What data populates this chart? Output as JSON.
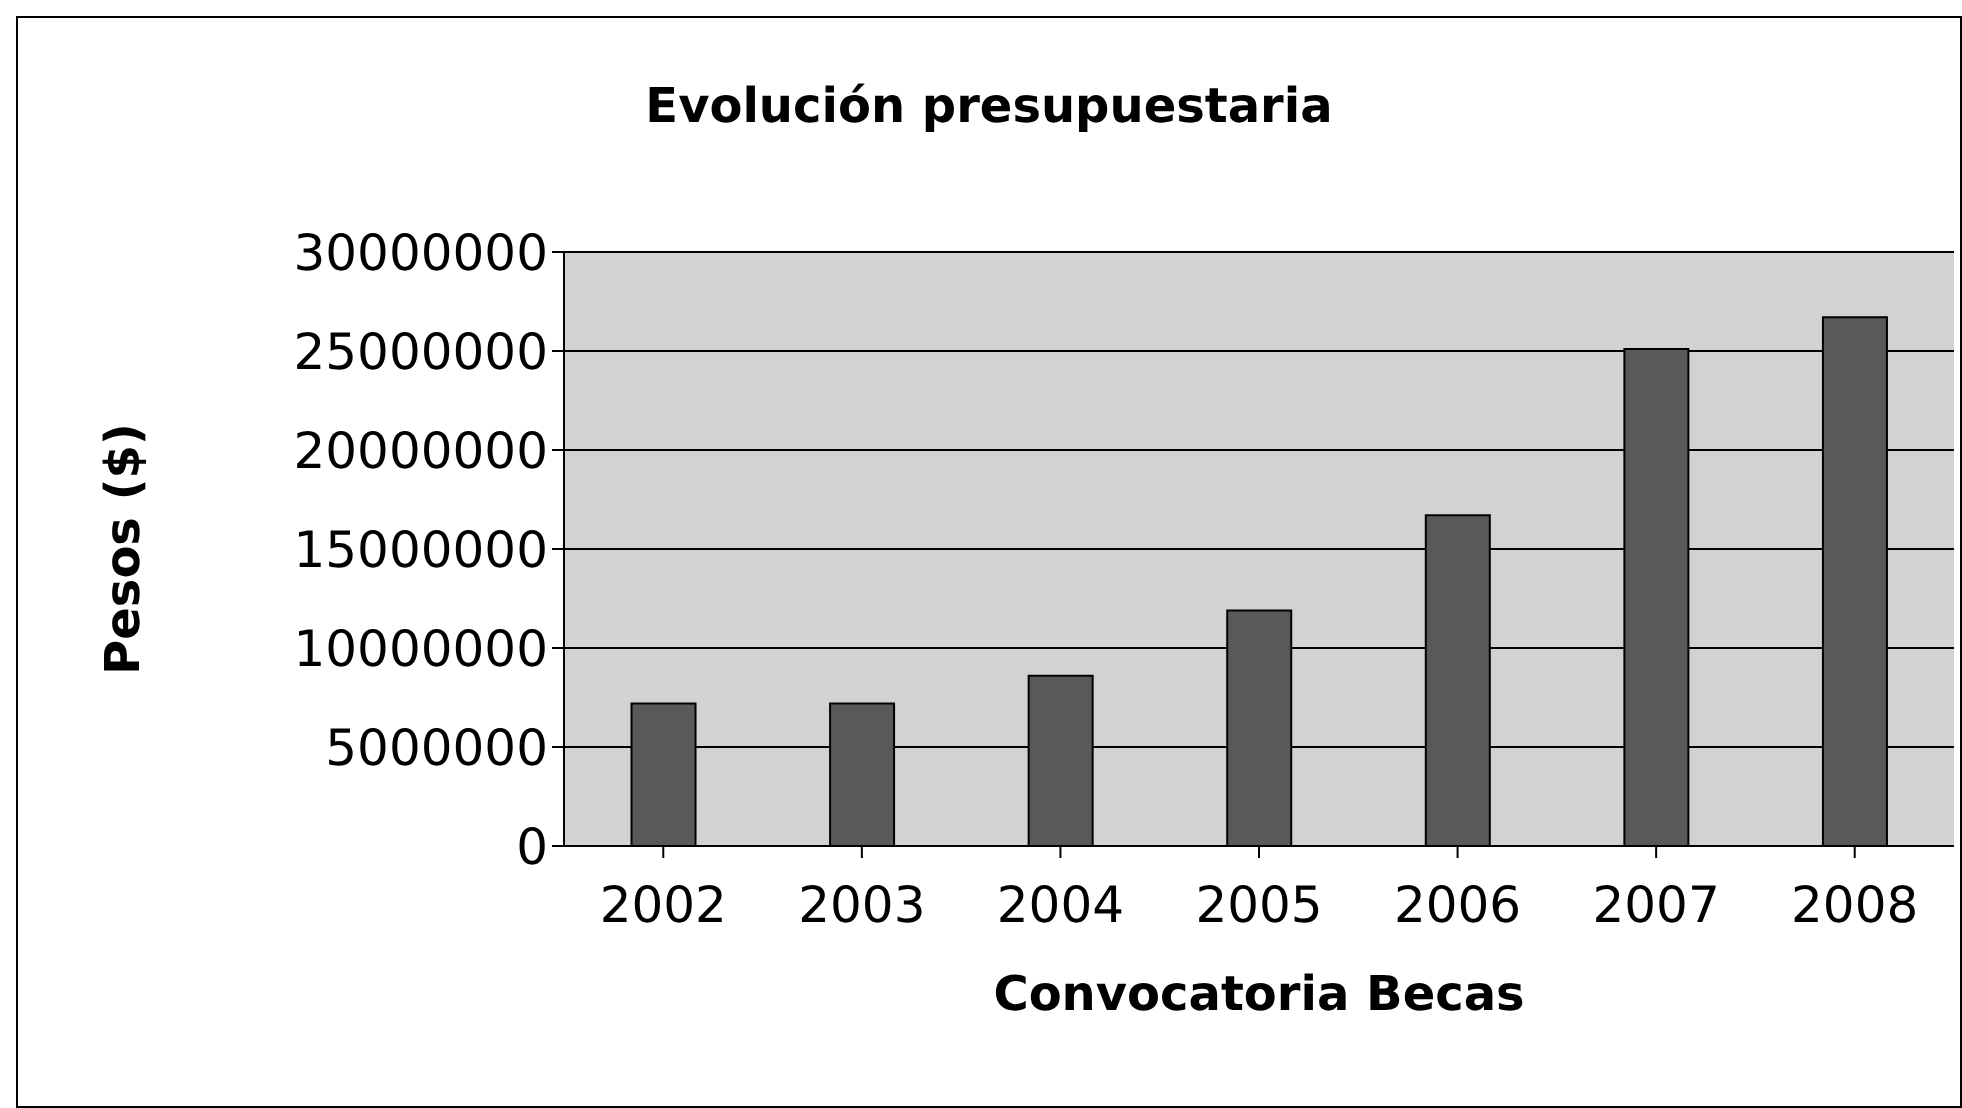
{
  "chart_data": {
    "type": "bar",
    "title": "Evolución presupuestaria",
    "xlabel": "Convocatoria Becas",
    "ylabel": "Pesos ($)",
    "categories": [
      "2002",
      "2003",
      "2004",
      "2005",
      "2006",
      "2007",
      "2008"
    ],
    "values": [
      7200000,
      7200000,
      8600000,
      11900000,
      16700000,
      25100000,
      26700000
    ],
    "color": "#58595b",
    "ylim": [
      0,
      30000000
    ],
    "yticks": [
      0,
      5000000,
      10000000,
      15000000,
      20000000,
      25000000,
      30000000
    ],
    "grid": "y",
    "legend": false
  }
}
